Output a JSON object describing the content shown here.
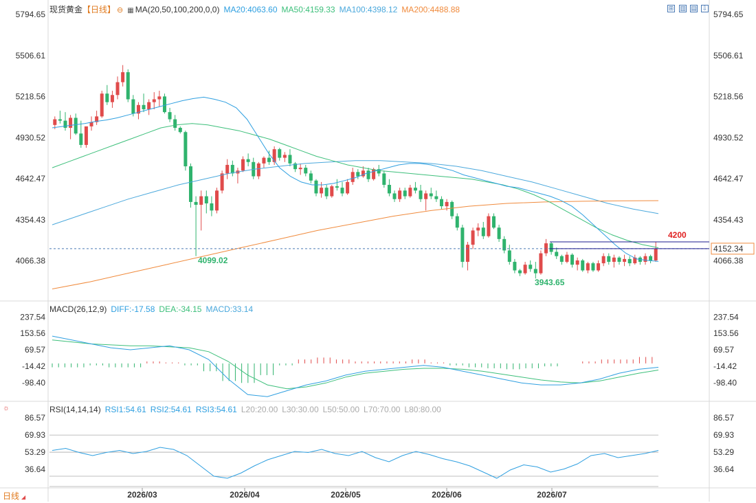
{
  "main_header": {
    "symbol": "现货黄金",
    "period_tag": "【日线】",
    "ma_label": "MA(20,50,100,200,0,0)",
    "ma20": "MA20:4063.60",
    "ma50": "MA50:4159.33",
    "ma100": "MA100:4398.12",
    "ma200": "MA200:4488.88"
  },
  "macd_header": {
    "label": "MACD(26,12,9)",
    "diff": "DIFF:-17.58",
    "dea": "DEA:-34.15",
    "macd": "MACD:33.14"
  },
  "rsi_header": {
    "label": "RSI(14,14,14)",
    "rsi1": "RSI1:54.61",
    "rsi2": "RSI2:54.61",
    "rsi3": "RSI3:54.61",
    "l20": "L20:20.00",
    "l30": "L30:30.00",
    "l50": "L50:50.00",
    "l70": "L70:70.00",
    "l80": "L80:80.00"
  },
  "period_button": {
    "label": "日线"
  },
  "colors": {
    "up": "#e04b4b",
    "down": "#2fb36d",
    "ma20": "#2e9fe0",
    "ma50": "#3cbf7a",
    "ma100": "#4aa8dc",
    "ma200": "#f08a3c",
    "macd_diff": "#2e9fe0",
    "macd_dea": "#3cbf7a",
    "rsi": "#2e9fe0"
  },
  "toolbar_icons": [
    "expand-icon",
    "panel-icon",
    "panel-icon-2",
    "download-icon"
  ],
  "chart_data": [
    {
      "type": "candlestick",
      "panel": "price",
      "yticks": [
        5794.65,
        5506.61,
        5218.56,
        4930.52,
        4642.47,
        4354.43,
        4066.38
      ],
      "ylim": [
        3800,
        5800
      ],
      "xticks": [
        "2026/03",
        "2026/04",
        "2026/05",
        "2026/06",
        "2026/07"
      ],
      "ohlc": [
        [
          5020,
          5080,
          4990,
          5060
        ],
        [
          5060,
          5120,
          5030,
          5050
        ],
        [
          5050,
          5110,
          4980,
          5000
        ],
        [
          5000,
          5090,
          4920,
          5070
        ],
        [
          5070,
          5100,
          4950,
          4960
        ],
        [
          4960,
          5050,
          4860,
          4880
        ],
        [
          4880,
          5000,
          4860,
          5010
        ],
        [
          5010,
          5080,
          4980,
          5040
        ],
        [
          5040,
          5120,
          5020,
          5080
        ],
        [
          5080,
          5260,
          5070,
          5240
        ],
        [
          5240,
          5300,
          5160,
          5180
        ],
        [
          5180,
          5260,
          5140,
          5230
        ],
        [
          5230,
          5360,
          5200,
          5320
        ],
        [
          5320,
          5440,
          5290,
          5390
        ],
        [
          5390,
          5410,
          5180,
          5200
        ],
        [
          5200,
          5230,
          5080,
          5100
        ],
        [
          5100,
          5180,
          5060,
          5160
        ],
        [
          5160,
          5240,
          5110,
          5130
        ],
        [
          5130,
          5200,
          5090,
          5180
        ],
        [
          5180,
          5250,
          5130,
          5200
        ],
        [
          5200,
          5260,
          5150,
          5220
        ],
        [
          5220,
          5240,
          5100,
          5110
        ],
        [
          5110,
          5140,
          5040,
          5060
        ],
        [
          5060,
          5090,
          4980,
          5000
        ],
        [
          5000,
          5010,
          4960,
          4970
        ],
        [
          4970,
          4980,
          4700,
          4730
        ],
        [
          4730,
          4750,
          4440,
          4480
        ],
        [
          4480,
          4520,
          4100,
          4460
        ],
        [
          4460,
          4560,
          4280,
          4520
        ],
        [
          4520,
          4560,
          4400,
          4470
        ],
        [
          4470,
          4520,
          4380,
          4420
        ],
        [
          4420,
          4580,
          4400,
          4560
        ],
        [
          4560,
          4700,
          4540,
          4680
        ],
        [
          4680,
          4780,
          4640,
          4740
        ],
        [
          4740,
          4770,
          4660,
          4680
        ],
        [
          4680,
          4720,
          4610,
          4700
        ],
        [
          4700,
          4800,
          4690,
          4780
        ],
        [
          4780,
          4820,
          4730,
          4760
        ],
        [
          4760,
          4790,
          4640,
          4660
        ],
        [
          4660,
          4760,
          4640,
          4750
        ],
        [
          4750,
          4800,
          4720,
          4790
        ],
        [
          4790,
          4840,
          4740,
          4760
        ],
        [
          4760,
          4870,
          4740,
          4850
        ],
        [
          4850,
          4860,
          4770,
          4790
        ],
        [
          4790,
          4830,
          4760,
          4810
        ],
        [
          4810,
          4850,
          4730,
          4750
        ],
        [
          4750,
          4760,
          4690,
          4710
        ],
        [
          4710,
          4750,
          4670,
          4720
        ],
        [
          4720,
          4740,
          4660,
          4680
        ],
        [
          4680,
          4700,
          4610,
          4630
        ],
        [
          4630,
          4640,
          4520,
          4540
        ],
        [
          4540,
          4620,
          4510,
          4580
        ],
        [
          4580,
          4600,
          4500,
          4520
        ],
        [
          4520,
          4600,
          4510,
          4590
        ],
        [
          4590,
          4640,
          4560,
          4580
        ],
        [
          4580,
          4620,
          4520,
          4540
        ],
        [
          4540,
          4640,
          4530,
          4620
        ],
        [
          4620,
          4720,
          4600,
          4690
        ],
        [
          4690,
          4710,
          4640,
          4660
        ],
        [
          4660,
          4730,
          4650,
          4700
        ],
        [
          4700,
          4720,
          4620,
          4640
        ],
        [
          4640,
          4720,
          4630,
          4710
        ],
        [
          4710,
          4740,
          4660,
          4680
        ],
        [
          4680,
          4700,
          4580,
          4600
        ],
        [
          4600,
          4640,
          4520,
          4540
        ],
        [
          4540,
          4560,
          4480,
          4500
        ],
        [
          4500,
          4580,
          4480,
          4560
        ],
        [
          4560,
          4580,
          4500,
          4520
        ],
        [
          4520,
          4600,
          4510,
          4580
        ],
        [
          4580,
          4620,
          4540,
          4560
        ],
        [
          4560,
          4600,
          4480,
          4500
        ],
        [
          4500,
          4560,
          4420,
          4540
        ],
        [
          4540,
          4580,
          4500,
          4520
        ],
        [
          4520,
          4560,
          4480,
          4500
        ],
        [
          4500,
          4520,
          4430,
          4450
        ],
        [
          4450,
          4500,
          4420,
          4480
        ],
        [
          4480,
          4490,
          4360,
          4380
        ],
        [
          4380,
          4400,
          4280,
          4300
        ],
        [
          4300,
          4320,
          4020,
          4060
        ],
        [
          4060,
          4200,
          4000,
          4180
        ],
        [
          4180,
          4300,
          4150,
          4280
        ],
        [
          4280,
          4330,
          4240,
          4300
        ],
        [
          4300,
          4340,
          4220,
          4240
        ],
        [
          4240,
          4400,
          4230,
          4380
        ],
        [
          4380,
          4400,
          4290,
          4300
        ],
        [
          4300,
          4320,
          4200,
          4220
        ],
        [
          4220,
          4240,
          4120,
          4140
        ],
        [
          4140,
          4180,
          4040,
          4060
        ],
        [
          4060,
          4080,
          3980,
          4000
        ],
        [
          4000,
          4010,
          3960,
          3980
        ],
        [
          3980,
          4060,
          3970,
          4040
        ],
        [
          4040,
          4070,
          3990,
          4010
        ],
        [
          4010,
          4060,
          3943,
          3980
        ],
        [
          3980,
          4140,
          3970,
          4120
        ],
        [
          4120,
          4220,
          4100,
          4190
        ],
        [
          4190,
          4200,
          4110,
          4130
        ],
        [
          4130,
          4160,
          4080,
          4100
        ],
        [
          4100,
          4110,
          4040,
          4060
        ],
        [
          4060,
          4130,
          4050,
          4110
        ],
        [
          4110,
          4120,
          4020,
          4040
        ],
        [
          4040,
          4090,
          4000,
          4070
        ],
        [
          4070,
          4080,
          3990,
          4000
        ],
        [
          4000,
          4060,
          3980,
          4050
        ],
        [
          4050,
          4060,
          3990,
          4000
        ],
        [
          4000,
          4070,
          3990,
          4050
        ],
        [
          4050,
          4120,
          4030,
          4100
        ],
        [
          4100,
          4120,
          4040,
          4060
        ],
        [
          4060,
          4110,
          4020,
          4090
        ],
        [
          4090,
          4100,
          4040,
          4060
        ],
        [
          4060,
          4110,
          4030,
          4080
        ],
        [
          4080,
          4100,
          4030,
          4050
        ],
        [
          4050,
          4110,
          4040,
          4090
        ],
        [
          4090,
          4100,
          4040,
          4060
        ],
        [
          4060,
          4120,
          4040,
          4100
        ],
        [
          4100,
          4110,
          4050,
          4070
        ],
        [
          4070,
          4200,
          4060,
          4152
        ]
      ],
      "ma20": [
        5000,
        5010,
        5020,
        5030,
        5045,
        5055,
        5070,
        5090,
        5110,
        5130,
        5150,
        5170,
        5190,
        5205,
        5215,
        5200,
        5180,
        5140,
        5060,
        4940,
        4820,
        4720,
        4660,
        4620,
        4600,
        4600,
        4610,
        4630,
        4650,
        4680,
        4700,
        4720,
        4740,
        4750,
        4750,
        4740,
        4720,
        4700,
        4670,
        4650,
        4630,
        4610,
        4590,
        4580,
        4560,
        4540,
        4520,
        4490,
        4450,
        4390,
        4320,
        4250,
        4180,
        4120,
        4080,
        4070,
        4063
      ],
      "ma50": [
        4720,
        4760,
        4800,
        4840,
        4880,
        4920,
        4960,
        5000,
        5020,
        5030,
        5020,
        5000,
        4980,
        4950,
        4920,
        4880,
        4840,
        4800,
        4770,
        4740,
        4720,
        4700,
        4690,
        4680,
        4670,
        4660,
        4650,
        4640,
        4620,
        4600,
        4570,
        4530,
        4480,
        4420,
        4360,
        4300,
        4250,
        4210,
        4180,
        4159
      ],
      "ma100": [
        4320,
        4380,
        4440,
        4500,
        4550,
        4600,
        4640,
        4680,
        4710,
        4730,
        4750,
        4760,
        4770,
        4770,
        4760,
        4750,
        4730,
        4700,
        4660,
        4620,
        4570,
        4520,
        4470,
        4430,
        4398
      ],
      "ma200": [
        3870,
        3920,
        3980,
        4040,
        4100,
        4160,
        4220,
        4280,
        4330,
        4380,
        4420,
        4450,
        4470,
        4480,
        4485,
        4488,
        4489
      ],
      "annotations": [
        {
          "label": "4099.02",
          "value": 4099.02
        },
        {
          "label": "3943.65",
          "value": 3943.65
        },
        {
          "label": "4200",
          "value": 4200
        }
      ],
      "last_price_tag": "4152.34",
      "last_price": 4152.34
    },
    {
      "type": "macd",
      "panel": "macd",
      "yticks": [
        237.54,
        153.56,
        69.57,
        -14.42,
        -98.4
      ],
      "ylim": [
        -180,
        260
      ],
      "diff": [
        140,
        120,
        100,
        80,
        70,
        80,
        90,
        70,
        20,
        -80,
        -160,
        -170,
        -140,
        -110,
        -90,
        -60,
        -40,
        -30,
        -20,
        -10,
        -20,
        -40,
        -60,
        -80,
        -100,
        -110,
        -110,
        -100,
        -80,
        -50,
        -30,
        -20
      ],
      "dea": [
        120,
        110,
        100,
        95,
        90,
        90,
        85,
        80,
        60,
        10,
        -60,
        -110,
        -130,
        -120,
        -100,
        -70,
        -50,
        -40,
        -30,
        -25,
        -25,
        -30,
        -40,
        -55,
        -70,
        -85,
        -95,
        -100,
        -90,
        -70,
        -50,
        -34
      ],
      "hist": [
        -20,
        -20,
        -10,
        -20,
        -20,
        10,
        5,
        -10,
        -40,
        -90,
        -100,
        -60,
        -10,
        20,
        30,
        20,
        10,
        10,
        10,
        20,
        5,
        -10,
        -20,
        -25,
        -30,
        -25,
        -15,
        0,
        10,
        20,
        20,
        33
      ]
    },
    {
      "type": "line",
      "panel": "rsi",
      "yticks": [
        86.57,
        69.93,
        53.29,
        36.64
      ],
      "ylim": [
        20,
        92
      ],
      "series": [
        {
          "name": "RSI1",
          "values": [
            55,
            57,
            53,
            50,
            53,
            55,
            52,
            54,
            58,
            56,
            50,
            40,
            30,
            28,
            33,
            40,
            46,
            50,
            54,
            53,
            56,
            52,
            50,
            54,
            48,
            44,
            50,
            54,
            51,
            47,
            44,
            40,
            34,
            28,
            36,
            41,
            39,
            34,
            37,
            42,
            50,
            52,
            48,
            50,
            52,
            55
          ]
        }
      ],
      "levels": [
        20,
        30,
        50,
        70,
        80
      ]
    }
  ]
}
